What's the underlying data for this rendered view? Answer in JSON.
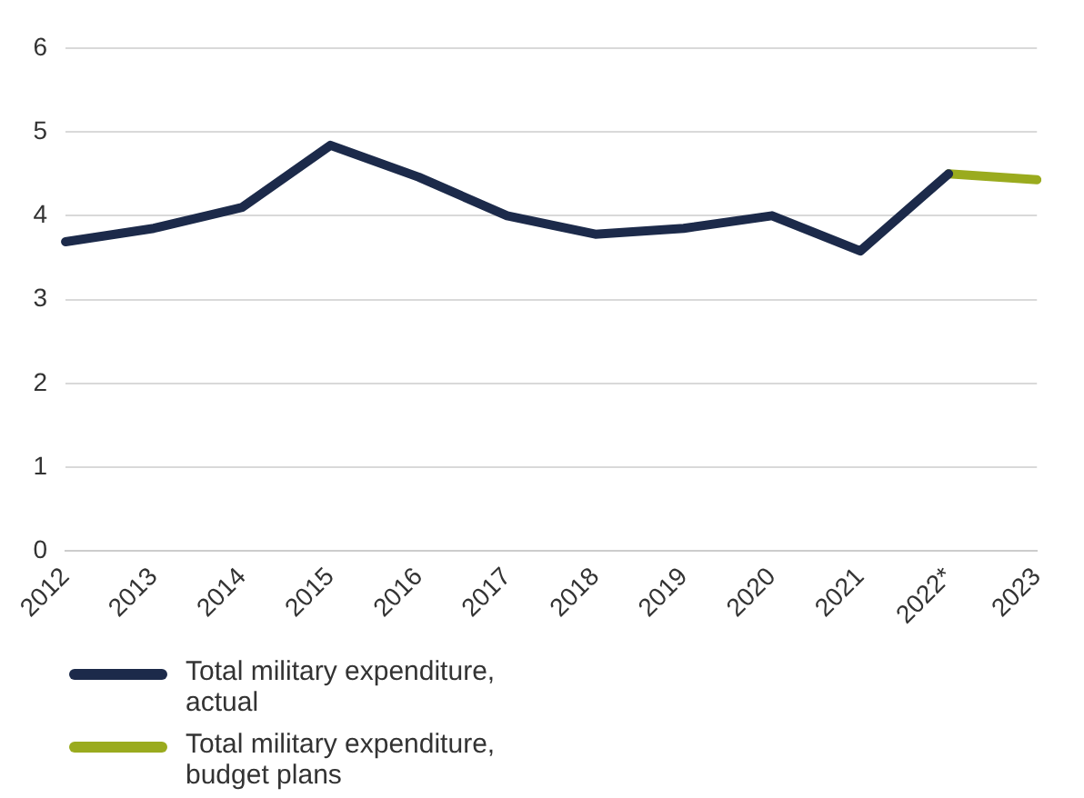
{
  "chart_data": {
    "type": "line",
    "categories": [
      "2012",
      "2013",
      "2014",
      "2015",
      "2016",
      "2017",
      "2018",
      "2019",
      "2020",
      "2021",
      "2022*",
      "2023"
    ],
    "series": [
      {
        "name": "Total military expenditure, actual",
        "color": "#1c2a4a",
        "values": [
          3.69,
          3.85,
          4.1,
          4.84,
          4.46,
          4.0,
          3.78,
          3.85,
          4.0,
          3.58,
          4.5,
          null
        ]
      },
      {
        "name": "Total military expenditure, budget plans",
        "color": "#9aab1e",
        "values": [
          null,
          null,
          null,
          null,
          null,
          null,
          null,
          null,
          null,
          null,
          4.5,
          4.43
        ]
      }
    ],
    "ylim": [
      0,
      6
    ],
    "yticks": [
      0,
      1,
      2,
      3,
      4,
      5,
      6
    ],
    "grid": "y",
    "legend": "bottom",
    "marker": "none",
    "line_style": "solid"
  }
}
